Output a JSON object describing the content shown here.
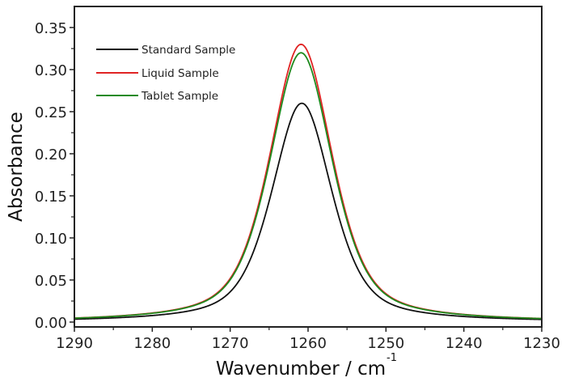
{
  "chart_data": {
    "type": "line",
    "title": "",
    "xlabel": "Wavenumber / cm",
    "xlabel_superscript": "-1",
    "ylabel": "Absorbance",
    "xlim": [
      1290,
      1230
    ],
    "ylim": [
      -0.005,
      0.37
    ],
    "x_reversed": true,
    "grid": false,
    "legend_position": "top-left",
    "x_ticks": [
      1290,
      1280,
      1270,
      1260,
      1250,
      1240,
      1230
    ],
    "x_tick_labels": [
      "1290",
      "1280",
      "1270",
      "1260",
      "1250",
      "1240",
      "1230"
    ],
    "y_ticks": [
      0.0,
      0.05,
      0.1,
      0.15,
      0.2,
      0.25,
      0.3,
      0.35
    ],
    "y_tick_labels": [
      "0.00",
      "0.05",
      "0.10",
      "0.15",
      "0.20",
      "0.25",
      "0.30",
      "0.35"
    ],
    "series": [
      {
        "name": "Standard Sample",
        "color": "#111111",
        "peak_center": 1260.8,
        "peak_height": 0.26,
        "fwhm": 9.2,
        "x": [
          1290,
          1285,
          1280,
          1275,
          1270,
          1267,
          1265,
          1263,
          1262,
          1260.8,
          1259.5,
          1258,
          1256,
          1254,
          1250,
          1245,
          1240,
          1235,
          1230
        ],
        "values": [
          0.001,
          0.003,
          0.006,
          0.012,
          0.032,
          0.07,
          0.118,
          0.19,
          0.235,
          0.26,
          0.24,
          0.195,
          0.118,
          0.068,
          0.025,
          0.009,
          0.004,
          0.002,
          0.001
        ]
      },
      {
        "name": "Liquid Sample",
        "color": "#e02424",
        "peak_center": 1260.9,
        "peak_height": 0.33,
        "fwhm": 9.6,
        "x": [
          1290,
          1285,
          1280,
          1275,
          1270,
          1267,
          1265,
          1263,
          1262,
          1260.9,
          1259.5,
          1258,
          1256,
          1254,
          1250,
          1245,
          1240,
          1235,
          1230
        ],
        "values": [
          0.001,
          0.004,
          0.008,
          0.017,
          0.046,
          0.098,
          0.165,
          0.255,
          0.305,
          0.33,
          0.306,
          0.252,
          0.16,
          0.095,
          0.034,
          0.012,
          0.005,
          0.002,
          0.001
        ]
      },
      {
        "name": "Tablet Sample",
        "color": "#1e8a1e",
        "peak_center": 1260.9,
        "peak_height": 0.32,
        "fwhm": 9.6,
        "x": [
          1290,
          1285,
          1280,
          1275,
          1270,
          1267,
          1265,
          1263,
          1262,
          1260.9,
          1259.5,
          1258,
          1256,
          1254,
          1250,
          1245,
          1240,
          1235,
          1230
        ],
        "values": [
          0.001,
          0.004,
          0.007,
          0.016,
          0.044,
          0.094,
          0.16,
          0.247,
          0.296,
          0.32,
          0.297,
          0.245,
          0.156,
          0.093,
          0.034,
          0.012,
          0.005,
          0.002,
          0.001
        ]
      }
    ]
  }
}
